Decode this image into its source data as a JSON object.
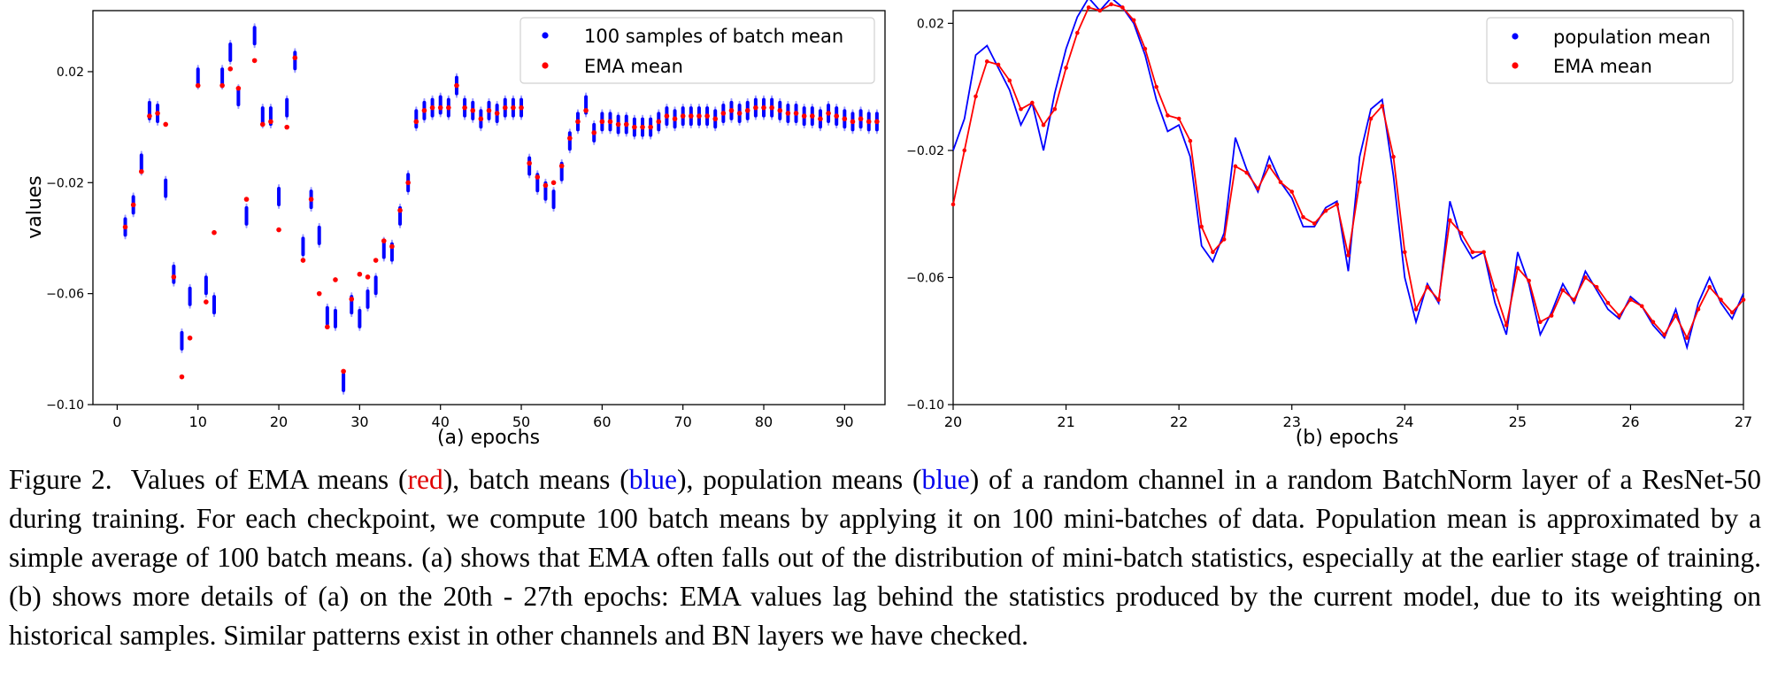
{
  "charts": [
    {
      "id": "a",
      "chart_data": {
        "type": "scatter",
        "title": "",
        "xlabel": "(a) epochs",
        "ylabel": "values",
        "xlim": [
          -3,
          95
        ],
        "ylim": [
          -0.1,
          0.042
        ],
        "xticks": [
          "0",
          "10",
          "20",
          "30",
          "40",
          "50",
          "60",
          "70",
          "80",
          "90"
        ],
        "xtick_values": [
          0,
          10,
          20,
          30,
          40,
          50,
          60,
          70,
          80,
          90
        ],
        "yticks": [
          "0.02",
          "−0.02",
          "−0.06",
          "−0.10"
        ],
        "ytick_values": [
          0.02,
          -0.02,
          -0.06,
          -0.1
        ],
        "grid": false,
        "legend_position": "top-right",
        "series": [
          {
            "name": "100 samples of batch mean",
            "color": "#0000ff",
            "marker": "dot-cluster",
            "x": [
              1,
              2,
              3,
              4,
              5,
              6,
              7,
              8,
              9,
              10,
              11,
              12,
              13,
              14,
              15,
              16,
              17,
              18,
              19,
              20,
              21,
              22,
              23,
              24,
              25,
              26,
              27,
              28,
              29,
              30,
              31,
              32,
              33,
              34,
              35,
              36,
              37,
              38,
              39,
              40,
              41,
              42,
              43,
              44,
              45,
              46,
              47,
              48,
              49,
              50,
              51,
              52,
              53,
              54,
              55,
              56,
              57,
              58,
              59,
              60,
              61,
              62,
              63,
              64,
              65,
              66,
              67,
              68,
              69,
              70,
              71,
              72,
              73,
              74,
              75,
              76,
              77,
              78,
              79,
              80,
              81,
              82,
              83,
              84,
              85,
              86,
              87,
              88,
              89,
              90,
              91,
              92,
              93,
              94
            ],
            "y": [
              -0.036,
              -0.028,
              -0.013,
              0.006,
              0.005,
              -0.022,
              -0.053,
              -0.077,
              -0.061,
              0.018,
              -0.057,
              -0.064,
              0.018,
              0.027,
              0.011,
              -0.032,
              0.033,
              0.004,
              0.004,
              -0.025,
              0.007,
              0.024,
              -0.043,
              -0.026,
              -0.039,
              -0.068,
              -0.069,
              -0.092,
              -0.064,
              -0.069,
              -0.062,
              -0.057,
              -0.044,
              -0.045,
              -0.032,
              -0.02,
              0.003,
              0.006,
              0.007,
              0.008,
              0.007,
              0.015,
              0.007,
              0.006,
              0.003,
              0.006,
              0.005,
              0.007,
              0.007,
              0.007,
              -0.014,
              -0.02,
              -0.023,
              -0.026,
              -0.016,
              -0.005,
              0.002,
              0.008,
              -0.002,
              0.002,
              0.002,
              0.001,
              0.001,
              0.0,
              0.0,
              0.0,
              0.002,
              0.004,
              0.003,
              0.004,
              0.004,
              0.004,
              0.004,
              0.003,
              0.005,
              0.006,
              0.005,
              0.006,
              0.007,
              0.007,
              0.007,
              0.006,
              0.005,
              0.005,
              0.004,
              0.004,
              0.003,
              0.005,
              0.004,
              0.003,
              0.002,
              0.003,
              0.002,
              0.002
            ]
          },
          {
            "name": "EMA mean",
            "color": "#ff0000",
            "marker": "dot",
            "x": [
              1,
              2,
              3,
              4,
              5,
              6,
              7,
              8,
              9,
              10,
              11,
              12,
              13,
              14,
              15,
              16,
              17,
              18,
              19,
              20,
              21,
              22,
              23,
              24,
              25,
              26,
              27,
              28,
              29,
              30,
              31,
              32,
              33,
              34,
              35,
              36,
              37,
              38,
              39,
              40,
              41,
              42,
              43,
              44,
              45,
              46,
              47,
              48,
              49,
              50,
              51,
              52,
              53,
              54,
              55,
              56,
              57,
              58,
              59,
              60,
              61,
              62,
              63,
              64,
              65,
              66,
              67,
              68,
              69,
              70,
              71,
              72,
              73,
              74,
              75,
              76,
              77,
              78,
              79,
              80,
              81,
              82,
              83,
              84,
              85,
              86,
              87,
              88,
              89,
              90,
              91,
              92,
              93,
              94
            ],
            "y": [
              -0.036,
              -0.028,
              -0.016,
              0.004,
              0.005,
              0.001,
              -0.054,
              -0.09,
              -0.076,
              0.015,
              -0.063,
              -0.038,
              0.015,
              0.021,
              0.014,
              -0.026,
              0.024,
              0.001,
              0.002,
              -0.037,
              -0.0,
              0.025,
              -0.048,
              -0.026,
              -0.06,
              -0.072,
              -0.055,
              -0.088,
              -0.062,
              -0.053,
              -0.054,
              -0.048,
              -0.041,
              -0.043,
              -0.03,
              -0.02,
              0.002,
              0.006,
              0.007,
              0.007,
              0.007,
              0.015,
              0.007,
              0.006,
              0.003,
              0.006,
              0.005,
              0.007,
              0.007,
              0.007,
              -0.013,
              -0.018,
              -0.021,
              -0.02,
              -0.014,
              -0.004,
              0.002,
              0.006,
              -0.002,
              0.002,
              0.002,
              0.001,
              0.001,
              0.0,
              0.0,
              0.0,
              0.002,
              0.004,
              0.003,
              0.004,
              0.004,
              0.004,
              0.004,
              0.003,
              0.005,
              0.006,
              0.005,
              0.006,
              0.007,
              0.007,
              0.007,
              0.006,
              0.005,
              0.005,
              0.004,
              0.004,
              0.003,
              0.005,
              0.004,
              0.003,
              0.002,
              0.003,
              0.002,
              0.002
            ]
          }
        ]
      }
    },
    {
      "id": "b",
      "chart_data": {
        "type": "line",
        "title": "",
        "xlabel": "(b) epochs",
        "ylabel": "",
        "xlim": [
          20,
          27
        ],
        "ylim": [
          -0.1,
          0.024
        ],
        "xticks": [
          "20",
          "21",
          "22",
          "23",
          "24",
          "25",
          "26",
          "27"
        ],
        "xtick_values": [
          20,
          21,
          22,
          23,
          24,
          25,
          26,
          27
        ],
        "yticks": [
          "0.02",
          "−0.02",
          "−0.06",
          "−0.10"
        ],
        "ytick_values": [
          0.02,
          -0.02,
          -0.06,
          -0.1
        ],
        "grid": false,
        "legend_position": "top-right",
        "series": [
          {
            "name": "population mean",
            "color": "#0000ff",
            "marker": "line",
            "x": [
              20.0,
              20.1,
              20.2,
              20.3,
              20.4,
              20.5,
              20.6,
              20.7,
              20.8,
              20.9,
              21.0,
              21.1,
              21.2,
              21.3,
              21.4,
              21.5,
              21.6,
              21.7,
              21.8,
              21.9,
              22.0,
              22.1,
              22.2,
              22.3,
              22.4,
              22.5,
              22.6,
              22.7,
              22.8,
              22.9,
              23.0,
              23.1,
              23.2,
              23.3,
              23.4,
              23.5,
              23.6,
              23.7,
              23.8,
              23.9,
              24.0,
              24.1,
              24.2,
              24.3,
              24.4,
              24.5,
              24.6,
              24.7,
              24.8,
              24.9,
              25.0,
              25.1,
              25.2,
              25.3,
              25.4,
              25.5,
              25.6,
              25.7,
              25.8,
              25.9,
              26.0,
              26.1,
              26.2,
              26.3,
              26.4,
              26.5,
              26.6,
              26.7,
              26.8,
              26.9,
              27.0
            ],
            "y": [
              -0.02,
              -0.01,
              0.01,
              0.013,
              0.006,
              -0.001,
              -0.012,
              -0.005,
              -0.02,
              -0.002,
              0.012,
              0.022,
              0.028,
              0.024,
              0.028,
              0.025,
              0.02,
              0.01,
              -0.004,
              -0.014,
              -0.012,
              -0.022,
              -0.05,
              -0.055,
              -0.046,
              -0.016,
              -0.026,
              -0.033,
              -0.022,
              -0.03,
              -0.035,
              -0.044,
              -0.044,
              -0.038,
              -0.036,
              -0.058,
              -0.022,
              -0.007,
              -0.004,
              -0.028,
              -0.06,
              -0.074,
              -0.062,
              -0.068,
              -0.036,
              -0.048,
              -0.054,
              -0.052,
              -0.068,
              -0.078,
              -0.052,
              -0.062,
              -0.078,
              -0.071,
              -0.062,
              -0.068,
              -0.058,
              -0.064,
              -0.07,
              -0.073,
              -0.066,
              -0.069,
              -0.075,
              -0.079,
              -0.07,
              -0.082,
              -0.068,
              -0.06,
              -0.068,
              -0.073,
              -0.065
            ]
          },
          {
            "name": "EMA mean",
            "color": "#ff0000",
            "marker": "line-dot",
            "x": [
              20.0,
              20.1,
              20.2,
              20.3,
              20.4,
              20.5,
              20.6,
              20.7,
              20.8,
              20.9,
              21.0,
              21.1,
              21.2,
              21.3,
              21.4,
              21.5,
              21.6,
              21.7,
              21.8,
              21.9,
              22.0,
              22.1,
              22.2,
              22.3,
              22.4,
              22.5,
              22.6,
              22.7,
              22.8,
              22.9,
              23.0,
              23.1,
              23.2,
              23.3,
              23.4,
              23.5,
              23.6,
              23.7,
              23.8,
              23.9,
              24.0,
              24.1,
              24.2,
              24.3,
              24.4,
              24.5,
              24.6,
              24.7,
              24.8,
              24.9,
              25.0,
              25.1,
              25.2,
              25.3,
              25.4,
              25.5,
              25.6,
              25.7,
              25.8,
              25.9,
              26.0,
              26.1,
              26.2,
              26.3,
              26.4,
              26.5,
              26.6,
              26.7,
              26.8,
              26.9,
              27.0
            ],
            "y": [
              -0.037,
              -0.02,
              -0.003,
              0.008,
              0.007,
              0.002,
              -0.007,
              -0.005,
              -0.012,
              -0.007,
              0.006,
              0.017,
              0.025,
              0.024,
              0.026,
              0.025,
              0.021,
              0.012,
              0.0,
              -0.009,
              -0.01,
              -0.017,
              -0.044,
              -0.052,
              -0.048,
              -0.025,
              -0.027,
              -0.032,
              -0.025,
              -0.03,
              -0.033,
              -0.041,
              -0.043,
              -0.039,
              -0.037,
              -0.053,
              -0.03,
              -0.01,
              -0.006,
              -0.022,
              -0.052,
              -0.07,
              -0.063,
              -0.067,
              -0.042,
              -0.046,
              -0.052,
              -0.052,
              -0.064,
              -0.075,
              -0.057,
              -0.061,
              -0.074,
              -0.072,
              -0.064,
              -0.067,
              -0.06,
              -0.063,
              -0.068,
              -0.072,
              -0.067,
              -0.069,
              -0.074,
              -0.078,
              -0.072,
              -0.079,
              -0.07,
              -0.063,
              -0.067,
              -0.071,
              -0.067
            ]
          }
        ]
      }
    }
  ],
  "caption": {
    "label": "Figure 2.",
    "part1": "Values of EMA means (",
    "red_word": "red",
    "part2": "), batch means (",
    "blue_word1": "blue",
    "part3": "), population means (",
    "blue_word2": "blue",
    "part4": ") of a random channel in a random BatchNorm layer of a ResNet-50 during training. For each checkpoint, we compute 100 batch means by applying it on 100 mini-batches of data. Population mean is approximated by a simple average of 100 batch means.  (a) shows that EMA often falls out of the distribution of mini-batch statistics, especially at the earlier stage of training. (b) shows more details of (a) on the 20th - 27th epochs: EMA values lag behind the statistics produced by the current model, due to its weighting on historical samples. Similar patterns exist in other channels and BN layers we have checked."
  }
}
